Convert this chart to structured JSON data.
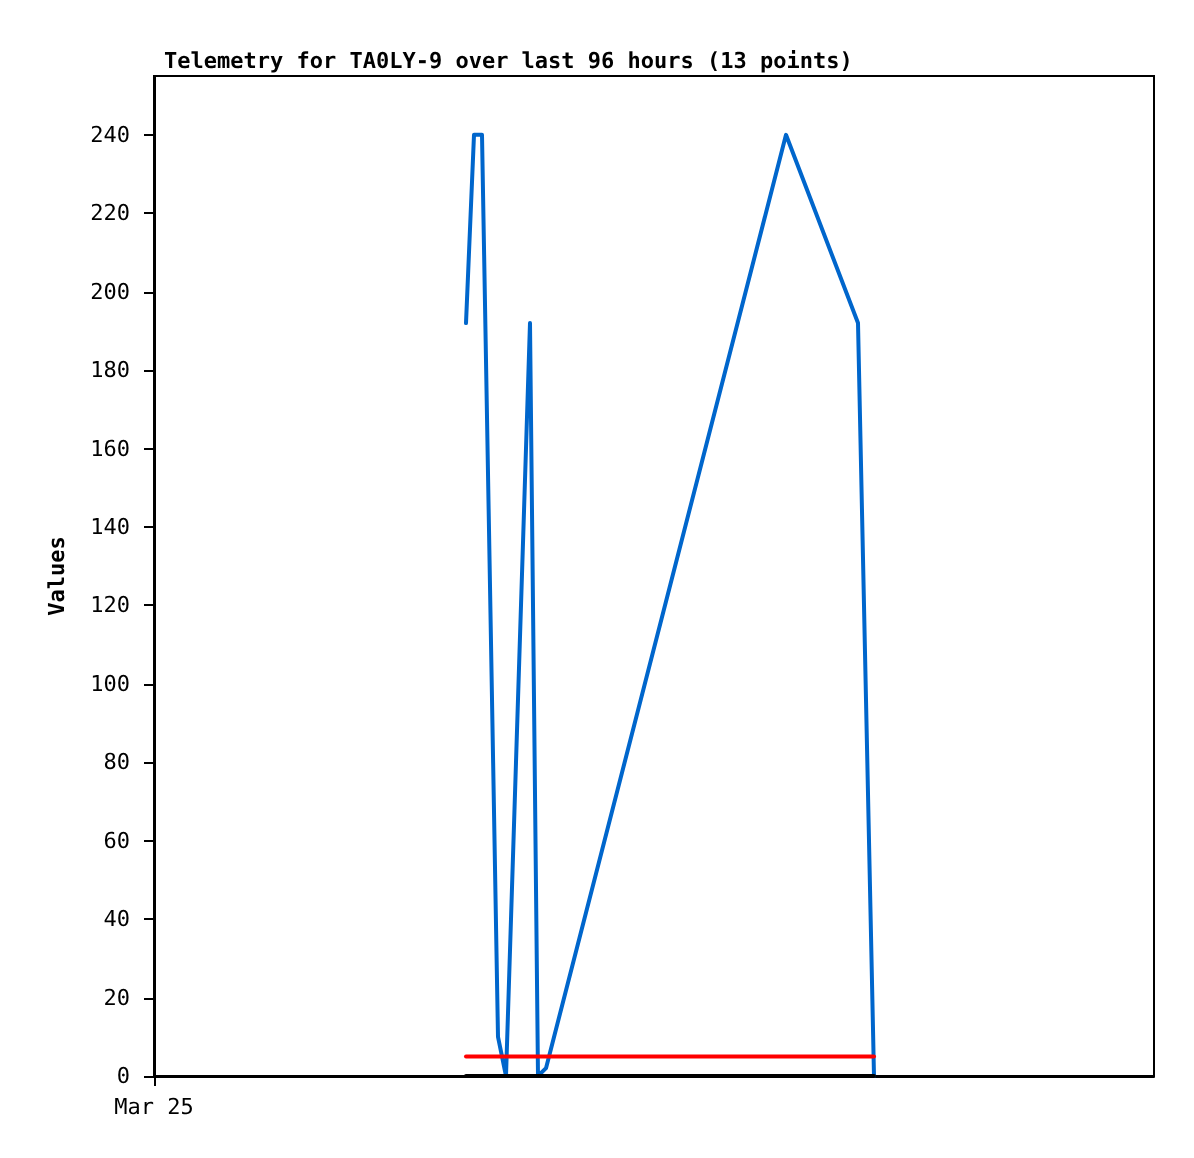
{
  "chart_data": {
    "type": "line",
    "title": "Telemetry for TA0LY-9 over last 96 hours (13 points)",
    "ylabel": "Values",
    "categories": [
      "Mar 25",
      null,
      null,
      null,
      null,
      null,
      null,
      null,
      null,
      null,
      null,
      null,
      null,
      null,
      null,
      null,
      null,
      null,
      null,
      null,
      null,
      null,
      null,
      null,
      null,
      null,
      null,
      null,
      null,
      null,
      null,
      null,
      null,
      null,
      null,
      null,
      null,
      null,
      null,
      null,
      null,
      null,
      null,
      null,
      null,
      null,
      null,
      null,
      null,
      null,
      null,
      null,
      null,
      null,
      null,
      null,
      null,
      null,
      null,
      null,
      null,
      null,
      null,
      null,
      null,
      null,
      null,
      null,
      null,
      null,
      null,
      null,
      null,
      null,
      null,
      null,
      null,
      null,
      null,
      null,
      null,
      null,
      null,
      null,
      null,
      null,
      null,
      null,
      null,
      null,
      null,
      null,
      null,
      null,
      null,
      null,
      null,
      null,
      null,
      null,
      null,
      null,
      null,
      null,
      null,
      null,
      null,
      null,
      null,
      null,
      null,
      null,
      null,
      null,
      null,
      null,
      null,
      null,
      null,
      null,
      null,
      null,
      null,
      null,
      null,
      null
    ],
    "ylim": [
      0,
      255
    ],
    "yticks": [
      0,
      20,
      40,
      60,
      80,
      100,
      120,
      140,
      160,
      180,
      200,
      220,
      240
    ],
    "grid": false,
    "marker": "none",
    "line_style": "solid",
    "series": [
      {
        "color": "#0066cc",
        "values": [
          null,
          null,
          null,
          null,
          null,
          null,
          null,
          null,
          null,
          null,
          null,
          null,
          null,
          null,
          null,
          null,
          null,
          null,
          null,
          null,
          null,
          null,
          null,
          null,
          null,
          null,
          null,
          null,
          null,
          null,
          null,
          null,
          null,
          null,
          null,
          null,
          null,
          null,
          null,
          192,
          240,
          240,
          null,
          10,
          0,
          null,
          null,
          192,
          0,
          2,
          null,
          null,
          null,
          null,
          null,
          null,
          null,
          null,
          null,
          null,
          null,
          null,
          null,
          null,
          null,
          null,
          null,
          null,
          null,
          null,
          null,
          null,
          null,
          null,
          null,
          null,
          null,
          null,
          null,
          240,
          null,
          null,
          null,
          null,
          null,
          null,
          null,
          null,
          192,
          null,
          0,
          null,
          null,
          null,
          null,
          null,
          null,
          null,
          null,
          null,
          null,
          null,
          null,
          null,
          null,
          null,
          null,
          null,
          null,
          null,
          null,
          null,
          null,
          null,
          null,
          null,
          null,
          null,
          null,
          null,
          null,
          null,
          null,
          null,
          null,
          null
        ]
      },
      {
        "color": "#ff0000",
        "values": [
          null,
          null,
          null,
          null,
          null,
          null,
          null,
          null,
          null,
          null,
          null,
          null,
          null,
          null,
          null,
          null,
          null,
          null,
          null,
          null,
          null,
          null,
          null,
          null,
          null,
          null,
          null,
          null,
          null,
          null,
          null,
          null,
          null,
          null,
          null,
          null,
          null,
          null,
          null,
          5,
          null,
          null,
          null,
          null,
          null,
          null,
          null,
          null,
          null,
          null,
          null,
          null,
          null,
          null,
          null,
          null,
          null,
          null,
          null,
          null,
          null,
          null,
          null,
          null,
          null,
          null,
          null,
          null,
          null,
          null,
          null,
          null,
          null,
          null,
          null,
          null,
          null,
          null,
          null,
          null,
          null,
          null,
          null,
          null,
          null,
          null,
          null,
          null,
          null,
          null,
          5,
          null,
          null,
          null,
          null,
          null,
          null,
          null,
          null,
          null,
          null,
          null,
          null,
          null,
          null,
          null,
          null,
          null,
          null,
          null,
          null,
          null,
          null,
          null,
          null,
          null,
          null,
          null,
          null,
          null,
          null,
          null,
          null,
          null,
          null,
          null
        ]
      },
      {
        "color": "#000000",
        "values": [
          null,
          null,
          null,
          null,
          null,
          null,
          null,
          null,
          null,
          null,
          null,
          null,
          null,
          null,
          null,
          null,
          null,
          null,
          null,
          null,
          null,
          null,
          null,
          null,
          null,
          null,
          null,
          null,
          null,
          null,
          null,
          null,
          null,
          null,
          null,
          null,
          null,
          null,
          null,
          0,
          null,
          null,
          null,
          null,
          null,
          null,
          null,
          null,
          null,
          null,
          null,
          null,
          null,
          null,
          null,
          null,
          null,
          null,
          null,
          null,
          null,
          null,
          null,
          null,
          null,
          null,
          null,
          null,
          null,
          null,
          null,
          null,
          null,
          null,
          null,
          null,
          null,
          null,
          null,
          null,
          null,
          null,
          null,
          null,
          null,
          null,
          null,
          null,
          null,
          null,
          0,
          null,
          null,
          null,
          null,
          null,
          null,
          null,
          null,
          null,
          null,
          null,
          null,
          null,
          null,
          null,
          null,
          null,
          null,
          null,
          null,
          null,
          null,
          null,
          null,
          null,
          null,
          null,
          null,
          null,
          null,
          null,
          null,
          null,
          null,
          null
        ]
      }
    ]
  }
}
